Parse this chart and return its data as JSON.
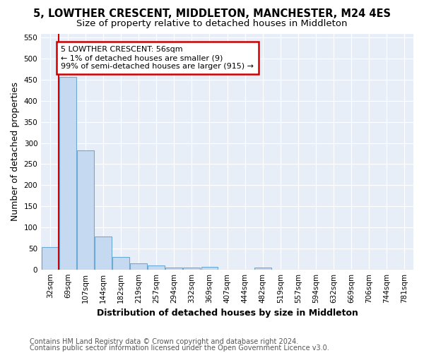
{
  "title": "5, LOWTHER CRESCENT, MIDDLETON, MANCHESTER, M24 4ES",
  "subtitle": "Size of property relative to detached houses in Middleton",
  "xlabel": "Distribution of detached houses by size in Middleton",
  "ylabel": "Number of detached properties",
  "bar_color": "#c5d9f0",
  "bar_edge_color": "#6aaad4",
  "categories": [
    "32sqm",
    "69sqm",
    "107sqm",
    "144sqm",
    "182sqm",
    "219sqm",
    "257sqm",
    "294sqm",
    "332sqm",
    "369sqm",
    "407sqm",
    "444sqm",
    "482sqm",
    "519sqm",
    "557sqm",
    "594sqm",
    "632sqm",
    "669sqm",
    "706sqm",
    "744sqm",
    "781sqm"
  ],
  "values": [
    53,
    457,
    283,
    78,
    30,
    14,
    10,
    5,
    5,
    6,
    0,
    0,
    5,
    0,
    0,
    0,
    0,
    0,
    0,
    0,
    0
  ],
  "ylim": [
    0,
    560
  ],
  "yticks": [
    0,
    50,
    100,
    150,
    200,
    250,
    300,
    350,
    400,
    450,
    500,
    550
  ],
  "annotation_title": "5 LOWTHER CRESCENT: 56sqm",
  "annotation_line1": "← 1% of detached houses are smaller (9)",
  "annotation_line2": "99% of semi-detached houses are larger (915) →",
  "annotation_box_color": "#ffffff",
  "annotation_box_edge": "#cc0000",
  "vline_color": "#cc0000",
  "plot_bg_color": "#e8eef7",
  "fig_bg_color": "#ffffff",
  "footer_line1": "Contains HM Land Registry data © Crown copyright and database right 2024.",
  "footer_line2": "Contains public sector information licensed under the Open Government Licence v3.0.",
  "grid_color": "#ffffff",
  "title_fontsize": 10.5,
  "subtitle_fontsize": 9.5,
  "axis_label_fontsize": 9,
  "tick_fontsize": 7.5,
  "annotation_fontsize": 8,
  "footer_fontsize": 7
}
